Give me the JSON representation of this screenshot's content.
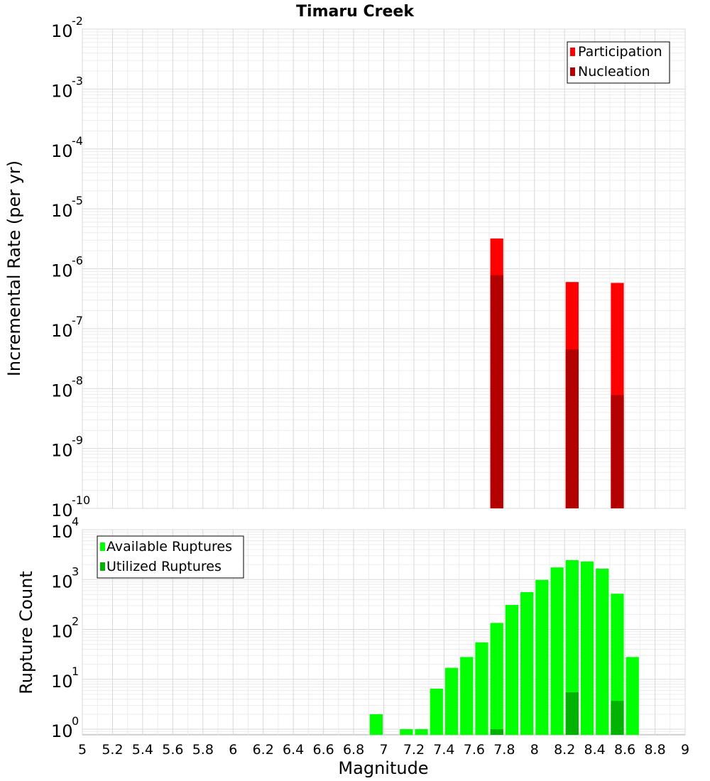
{
  "title": "Timaru Creek",
  "chart_data": [
    {
      "type": "bar",
      "ylabel": "Incremental Rate (per yr)",
      "yscale": "log",
      "ylim": [
        1e-10,
        0.01
      ],
      "xlim": [
        5,
        9
      ],
      "bin_width": 0.1,
      "grid": true,
      "legend_position": "top-right",
      "y_ticks": [
        {
          "base": "10",
          "exp": "-10",
          "value": 1e-10
        },
        {
          "base": "10",
          "exp": "-9",
          "value": 1e-09
        },
        {
          "base": "10",
          "exp": "-8",
          "value": 1e-08
        },
        {
          "base": "10",
          "exp": "-7",
          "value": 1e-07
        },
        {
          "base": "10",
          "exp": "-6",
          "value": 1e-06
        },
        {
          "base": "10",
          "exp": "-5",
          "value": 1e-05
        },
        {
          "base": "10",
          "exp": "-4",
          "value": 0.0001
        },
        {
          "base": "10",
          "exp": "-3",
          "value": 0.001
        },
        {
          "base": "10",
          "exp": "-2",
          "value": 0.01
        }
      ],
      "series": [
        {
          "name": "Participation",
          "color": "#ff0000",
          "points": [
            {
              "x": 7.75,
              "y": 3.2e-06
            },
            {
              "x": 8.25,
              "y": 6e-07
            },
            {
              "x": 8.55,
              "y": 5.8e-07
            }
          ]
        },
        {
          "name": "Nucleation",
          "color": "#b30000",
          "points": [
            {
              "x": 7.75,
              "y": 7.8e-07
            },
            {
              "x": 8.25,
              "y": 4.5e-08
            },
            {
              "x": 8.55,
              "y": 7.8e-09
            }
          ]
        }
      ]
    },
    {
      "type": "bar",
      "ylabel": "Rupture Count",
      "xlabel": "Magnitude",
      "yscale": "log",
      "ylim": [
        0.77,
        10000
      ],
      "xlim": [
        5,
        9
      ],
      "bin_width": 0.1,
      "grid": true,
      "legend_position": "top-left",
      "x_ticks": [
        "5",
        "5.2",
        "5.4",
        "5.6",
        "5.8",
        "6",
        "6.2",
        "6.4",
        "6.6",
        "6.8",
        "7",
        "7.2",
        "7.4",
        "7.6",
        "7.8",
        "8",
        "8.2",
        "8.4",
        "8.6",
        "8.8",
        "9"
      ],
      "y_ticks": [
        {
          "base": "10",
          "exp": "0",
          "value": 1
        },
        {
          "base": "10",
          "exp": "1",
          "value": 10
        },
        {
          "base": "10",
          "exp": "2",
          "value": 100
        },
        {
          "base": "10",
          "exp": "3",
          "value": 1000
        },
        {
          "base": "10",
          "exp": "4",
          "value": 10000
        }
      ],
      "series": [
        {
          "name": "Available Ruptures",
          "color": "#00ff00",
          "points": [
            {
              "x": 6.95,
              "y": 2
            },
            {
              "x": 7.15,
              "y": 1
            },
            {
              "x": 7.25,
              "y": 1
            },
            {
              "x": 7.35,
              "y": 6.5
            },
            {
              "x": 7.45,
              "y": 17
            },
            {
              "x": 7.55,
              "y": 28
            },
            {
              "x": 7.65,
              "y": 55
            },
            {
              "x": 7.75,
              "y": 135
            },
            {
              "x": 7.85,
              "y": 310
            },
            {
              "x": 7.95,
              "y": 560
            },
            {
              "x": 8.05,
              "y": 980
            },
            {
              "x": 8.15,
              "y": 1750
            },
            {
              "x": 8.25,
              "y": 2450
            },
            {
              "x": 8.35,
              "y": 2300
            },
            {
              "x": 8.45,
              "y": 1650
            },
            {
              "x": 8.55,
              "y": 520
            },
            {
              "x": 8.65,
              "y": 28
            }
          ]
        },
        {
          "name": "Utilized Ruptures",
          "color": "#00b300",
          "points": [
            {
              "x": 7.75,
              "y": 1
            },
            {
              "x": 8.25,
              "y": 5.5
            },
            {
              "x": 8.55,
              "y": 3.7
            }
          ]
        }
      ]
    }
  ]
}
